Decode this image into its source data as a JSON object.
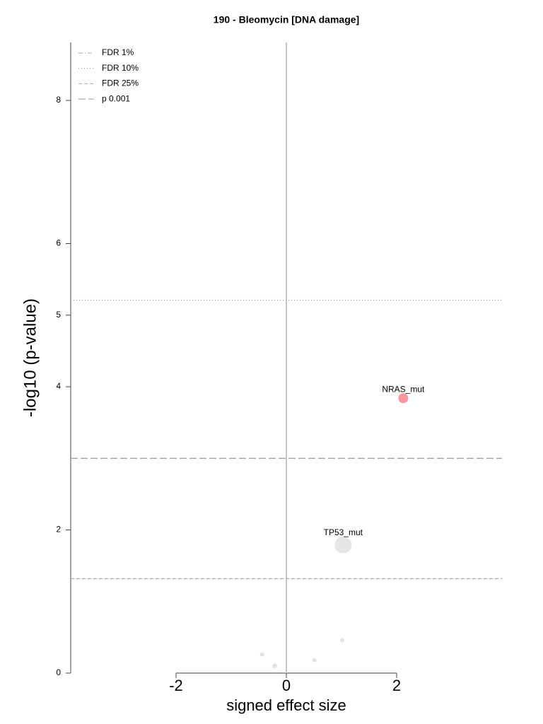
{
  "chart_data": {
    "type": "scatter",
    "title": "190 - Bleomycin [DNA damage]",
    "xlabel": "signed effect size",
    "ylabel": "-log10 (p-value)",
    "x": [
      2.12,
      1.03,
      -0.44,
      -0.21,
      0.51,
      1.01
    ],
    "values": [
      3.84,
      1.79,
      0.26,
      0.1,
      0.18,
      0.46
    ],
    "sizes": [
      49,
      144,
      9,
      12,
      9,
      9
    ],
    "point_colors": [
      "#f9979e",
      "#e6e6e6",
      "#e3e3e3",
      "#e3e3e3",
      "#e3e3e3",
      "#e3e3e3"
    ],
    "point_labels": [
      "NRAS_mut",
      "TP53_mut",
      null,
      null,
      null,
      null
    ],
    "xlim": [
      -3.91,
      3.91
    ],
    "xticks": [
      -2,
      0,
      2
    ],
    "ylim": [
      0,
      8.81
    ],
    "yticks": [
      0,
      2,
      4,
      5,
      6,
      8
    ],
    "zero_line_color": "#c8c8c8",
    "thresholds": [
      {
        "name": "FDR 1%",
        "value": null,
        "dash": "6,3,1,3",
        "color": "#aaaaaa"
      },
      {
        "name": "FDR 10%",
        "value": 5.21,
        "dash": "1,3",
        "color": "#999999"
      },
      {
        "name": "FDR 25%",
        "value": 1.32,
        "dash": "5,3",
        "color": "#aaaaaa"
      },
      {
        "name": "p 0.001",
        "value": 3,
        "dash": "10,4",
        "color": "#999999"
      }
    ],
    "legend": "upper left"
  }
}
